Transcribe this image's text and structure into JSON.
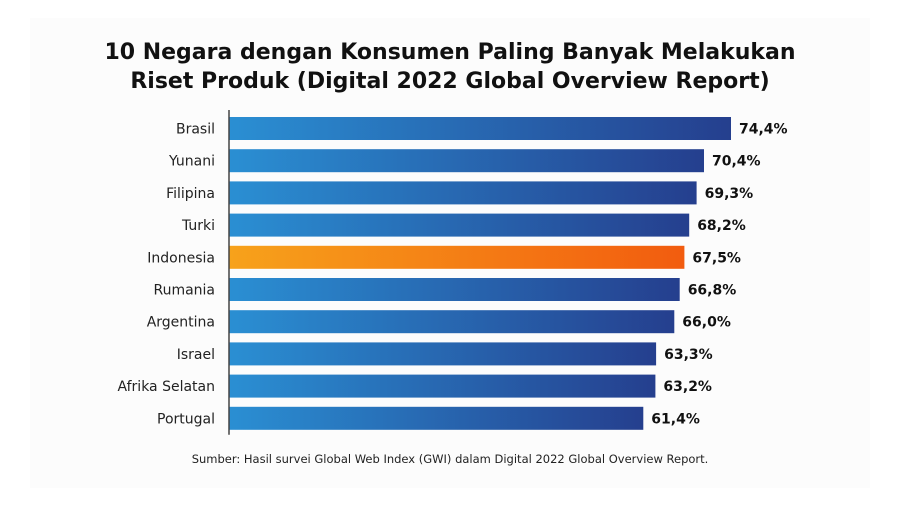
{
  "colors": {
    "bar_start": "#2a8fd3",
    "bar_end": "#253f8e",
    "highlight_start": "#f7a21b",
    "highlight_end": "#f25c0f",
    "axis": "#444444",
    "label": "#222222",
    "value": "#111111"
  },
  "chart_data": {
    "type": "bar",
    "orientation": "horizontal",
    "title_lines": [
      "10 Negara dengan Konsumen Paling Banyak Melakukan",
      "Riset Produk (Digital 2022 Global Overview Report)"
    ],
    "categories": [
      "Brasil",
      "Yunani",
      "Filipina",
      "Turki",
      "Indonesia",
      "Rumania",
      "Argentina",
      "Israel",
      "Afrika Selatan",
      "Portugal"
    ],
    "values": [
      74.4,
      70.4,
      69.3,
      68.2,
      67.5,
      66.8,
      66.0,
      63.3,
      63.2,
      61.4
    ],
    "value_labels": [
      "74,4%",
      "70,4%",
      "69,3%",
      "68,2%",
      "67,5%",
      "66,8%",
      "66,0%",
      "63,3%",
      "63,2%",
      "61,4%"
    ],
    "highlight": "Indonesia",
    "xlim": [
      0,
      74.4
    ],
    "unit": "%",
    "grid": false,
    "xlabel": "",
    "ylabel": ""
  },
  "source": "Sumber: Hasil survei Global Web Index (GWI) dalam Digital 2022 Global Overview Report."
}
